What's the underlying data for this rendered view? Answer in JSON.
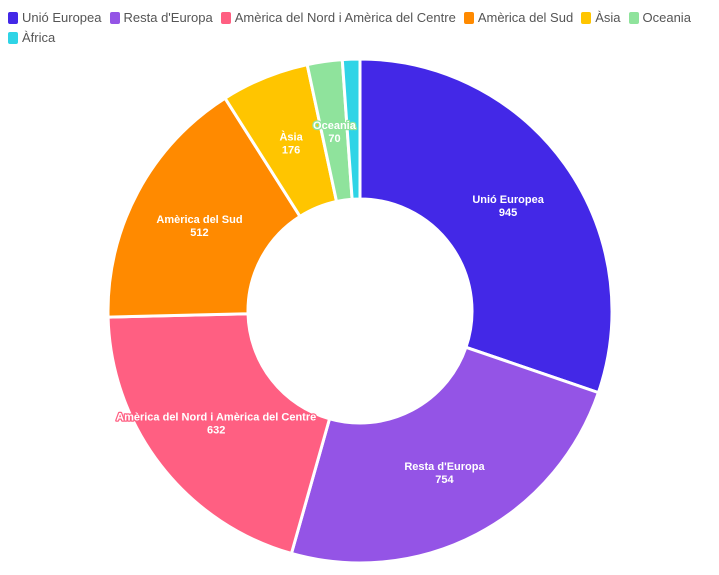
{
  "chart_data": {
    "type": "pie",
    "donut": true,
    "title": "",
    "legend_position": "top-left",
    "categories": [
      "Unió Europea",
      "Resta d'Europa",
      "Amèrica del Nord i Amèrica del Centre",
      "Amèrica del Sud",
      "Àsia",
      "Oceania",
      "Àfrica"
    ],
    "values": [
      945,
      754,
      632,
      512,
      176,
      70,
      35
    ],
    "value_labels": [
      "945",
      "754",
      "632",
      "512",
      "176",
      "70",
      ""
    ],
    "colors": [
      "#4328e7",
      "#9454e6",
      "#ff5f82",
      "#ff8a00",
      "#ffc500",
      "#8fe39c",
      "#2fd4e6"
    ]
  }
}
